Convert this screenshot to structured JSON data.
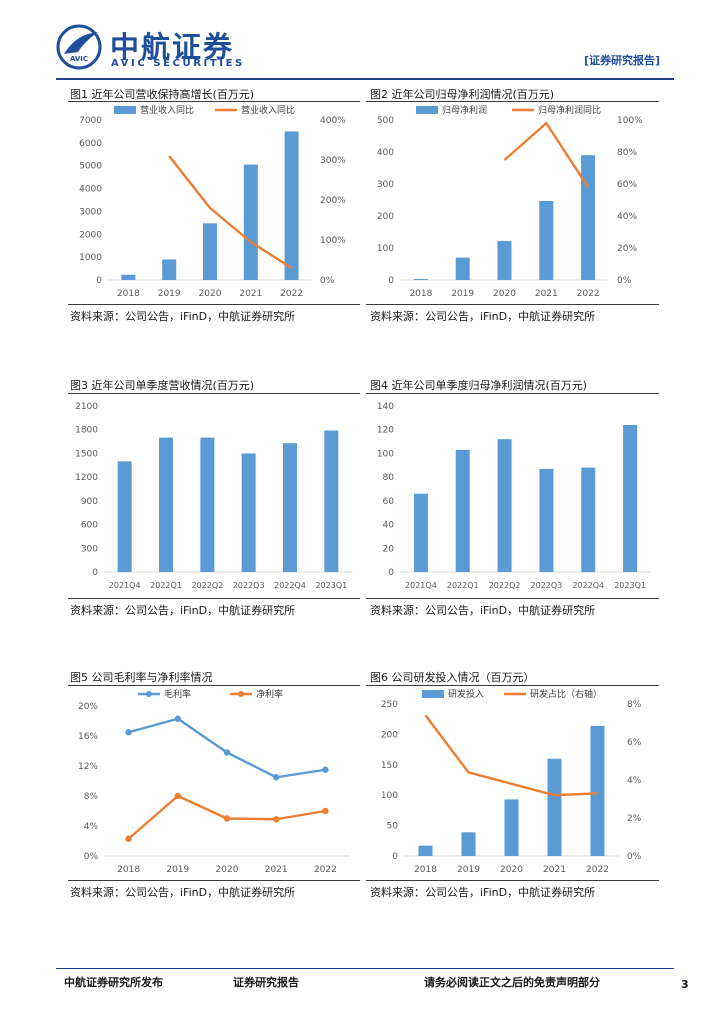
{
  "header": {
    "company_cn": "中航证券",
    "company_en": "AVIC  SECURITIES",
    "logo_text": "AVIC",
    "report_type": "[证券研究报告]"
  },
  "figures": [
    {
      "label": "图1",
      "title": "近年公司营收保持高增长(百万元)",
      "source": "资料来源：公司公告，iFinD，中航证券研究所"
    },
    {
      "label": "图2",
      "title": "近年公司归母净利润情况(百万元)",
      "source": "资料来源：公司公告，iFinD，中航证券研究所"
    },
    {
      "label": "图3",
      "title": "近年公司单季度营收情况(百万元)",
      "source": "资料来源：公司公告，iFinD，中航证券研究所"
    },
    {
      "label": "图4",
      "title": "近年公司单季度归母净利润情况(百万元)",
      "source": "资料来源：公司公告，iFinD，中航证券研究所"
    },
    {
      "label": "图5",
      "title": "公司毛利率与净利率情况",
      "source": "资料来源：公司公告，iFinD，中航证券研究所"
    },
    {
      "label": "图6",
      "title": "公司研发投入情况（百万元）",
      "source": "资料来源：公司公告，iFinD，中航证券研究所"
    }
  ],
  "chart_data": [
    {
      "type": "bar",
      "title": "近年公司营收保持高增长(百万元)",
      "categories": [
        "2018",
        "2019",
        "2020",
        "2021",
        "2022"
      ],
      "series": [
        {
          "name": "营业收入同比",
          "kind": "bar",
          "axis": "left",
          "values": [
            230,
            900,
            2480,
            5050,
            6500
          ]
        },
        {
          "name": "营业收入同比",
          "kind": "line",
          "axis": "right",
          "values": [
            null,
            310,
            180,
            95,
            30
          ]
        }
      ],
      "left_axis": {
        "min": 0,
        "max": 7000,
        "ticks": [
          "0",
          "1000",
          "2000",
          "3000",
          "4000",
          "5000",
          "6000",
          "7000"
        ]
      },
      "right_axis": {
        "min": 0,
        "max": 400,
        "ticks": [
          "0%",
          "100%",
          "200%",
          "300%",
          "400%"
        ]
      }
    },
    {
      "type": "bar",
      "title": "近年公司归母净利润情况(百万元)",
      "categories": [
        "2018",
        "2019",
        "2020",
        "2021",
        "2022"
      ],
      "series": [
        {
          "name": "归母净利润",
          "kind": "bar",
          "axis": "left",
          "values": [
            3,
            70,
            122,
            247,
            390
          ]
        },
        {
          "name": "归母净利润同比",
          "kind": "line",
          "axis": "right",
          "values": [
            null,
            null,
            75,
            98,
            58
          ]
        }
      ],
      "left_axis": {
        "min": 0,
        "max": 500,
        "ticks": [
          "0",
          "100",
          "200",
          "300",
          "400",
          "500"
        ]
      },
      "right_axis": {
        "min": 0,
        "max": 100,
        "ticks": [
          "0%",
          "20%",
          "40%",
          "60%",
          "80%",
          "100%"
        ]
      }
    },
    {
      "type": "bar",
      "title": "近年公司单季度营收情况(百万元)",
      "categories": [
        "2021Q4",
        "2022Q1",
        "2022Q2",
        "2022Q3",
        "2022Q4",
        "2023Q1"
      ],
      "series": [
        {
          "name": "单季度营收",
          "kind": "bar",
          "axis": "left",
          "values": [
            1400,
            1700,
            1700,
            1500,
            1630,
            1790
          ]
        }
      ],
      "left_axis": {
        "min": 0,
        "max": 2100,
        "ticks": [
          "0",
          "300",
          "600",
          "900",
          "1200",
          "1500",
          "1800",
          "2100"
        ]
      }
    },
    {
      "type": "bar",
      "title": "近年公司单季度归母净利润情况(百万元)",
      "categories": [
        "2021Q4",
        "2022Q1",
        "2022Q2",
        "2022Q3",
        "2022Q4",
        "2023Q1"
      ],
      "series": [
        {
          "name": "单季度归母净利润",
          "kind": "bar",
          "axis": "left",
          "values": [
            66,
            103,
            112,
            87,
            88,
            124
          ]
        }
      ],
      "left_axis": {
        "min": 0,
        "max": 140,
        "ticks": [
          "0",
          "20",
          "40",
          "60",
          "80",
          "100",
          "120",
          "140"
        ]
      }
    },
    {
      "type": "line",
      "title": "公司毛利率与净利率情况",
      "categories": [
        "2018",
        "2019",
        "2020",
        "2021",
        "2022"
      ],
      "series": [
        {
          "name": "毛利率",
          "kind": "line",
          "axis": "left",
          "marker": true,
          "color": "#5b9bd5",
          "values": [
            16.5,
            18.3,
            13.8,
            10.5,
            11.5
          ]
        },
        {
          "name": "净利率",
          "kind": "line",
          "axis": "left",
          "marker": true,
          "color": "#ed7d31",
          "values": [
            2.3,
            8.0,
            5.0,
            4.9,
            6.0
          ]
        }
      ],
      "left_axis": {
        "min": 0,
        "max": 20,
        "ticks": [
          "0%",
          "4%",
          "8%",
          "12%",
          "16%",
          "20%"
        ]
      }
    },
    {
      "type": "bar",
      "title": "公司研发投入情况（百万元）",
      "categories": [
        "2018",
        "2019",
        "2020",
        "2021",
        "2022"
      ],
      "series": [
        {
          "name": "研发投入",
          "kind": "bar",
          "axis": "left",
          "values": [
            17,
            39,
            93,
            160,
            214
          ]
        },
        {
          "name": "研发占比（右轴）",
          "kind": "line",
          "axis": "right",
          "values": [
            7.4,
            4.4,
            3.8,
            3.2,
            3.3
          ]
        }
      ],
      "left_axis": {
        "min": 0,
        "max": 250,
        "ticks": [
          "0",
          "50",
          "100",
          "150",
          "200",
          "250"
        ]
      },
      "right_axis": {
        "min": 0,
        "max": 8,
        "ticks": [
          "0%",
          "2%",
          "4%",
          "6%",
          "8%"
        ]
      }
    }
  ],
  "footer": {
    "publisher": "中航证券研究所发布",
    "report_type": "证券研究报告",
    "disclaimer": "请务必阅读正文之后的免责声明部分",
    "page": "3"
  },
  "colors": {
    "brand": "#1f4e9a",
    "bar": "#5b9bd5",
    "line": "#ed7d31",
    "axis": "#d9d9d9",
    "tick": "#595959"
  }
}
